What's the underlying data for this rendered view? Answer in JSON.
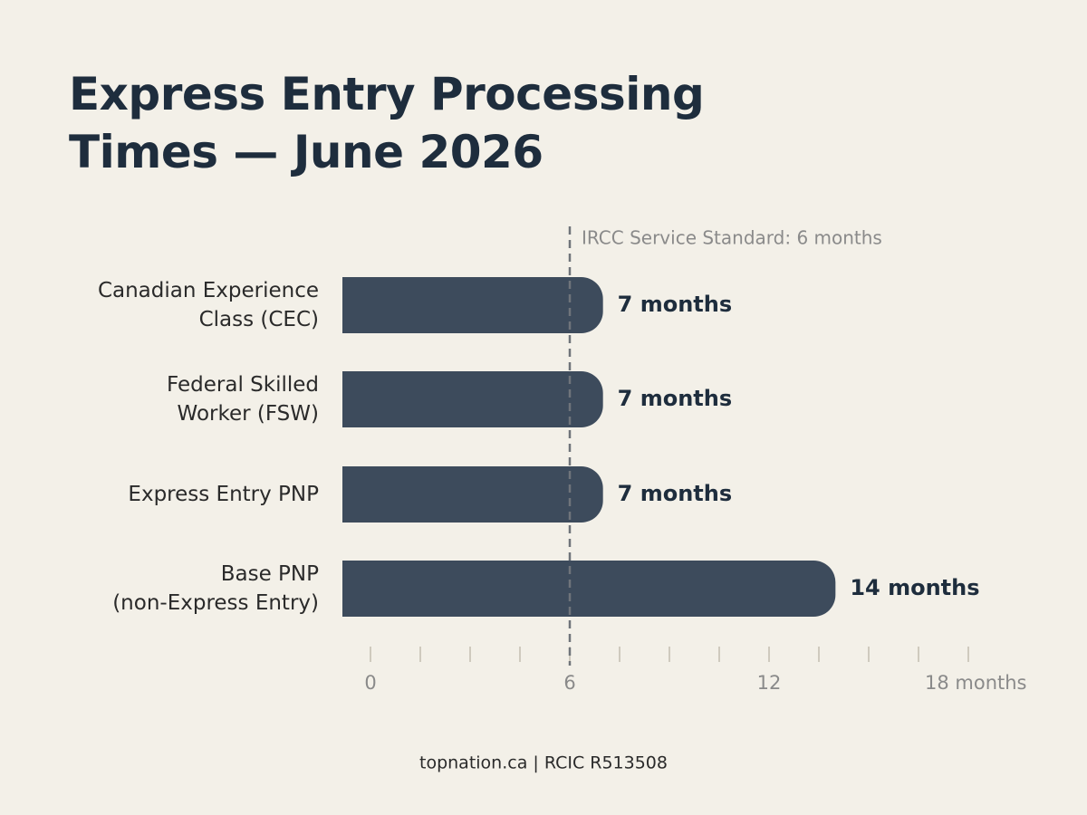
{
  "chart_data": {
    "type": "hbar",
    "title": "Express Entry Processing Times — June 2026",
    "categories": [
      "Canadian Experience\nClass (CEC)",
      "Federal Skilled\nWorker (FSW)",
      "Express Entry PNP",
      "Base PNP\n(non-Express Entry)"
    ],
    "values": [
      7,
      7,
      7,
      14
    ],
    "value_labels": [
      "7 months",
      "7 months",
      "7 months",
      "14 months"
    ],
    "color": "#3d4b5c",
    "xlim": [
      0,
      18
    ],
    "xticks": [
      0,
      6,
      12,
      {
        "value": 18,
        "label": "18 months"
      }
    ],
    "xminorticks": [
      0,
      1.5,
      3,
      4.5,
      6,
      7.5,
      9,
      10.5,
      12,
      13.5,
      15,
      16.5,
      18
    ],
    "reference_line": {
      "value": 6,
      "label": "IRCC Service Standard: 6 months"
    },
    "footer": "topnation.ca | RCIC R513508"
  }
}
